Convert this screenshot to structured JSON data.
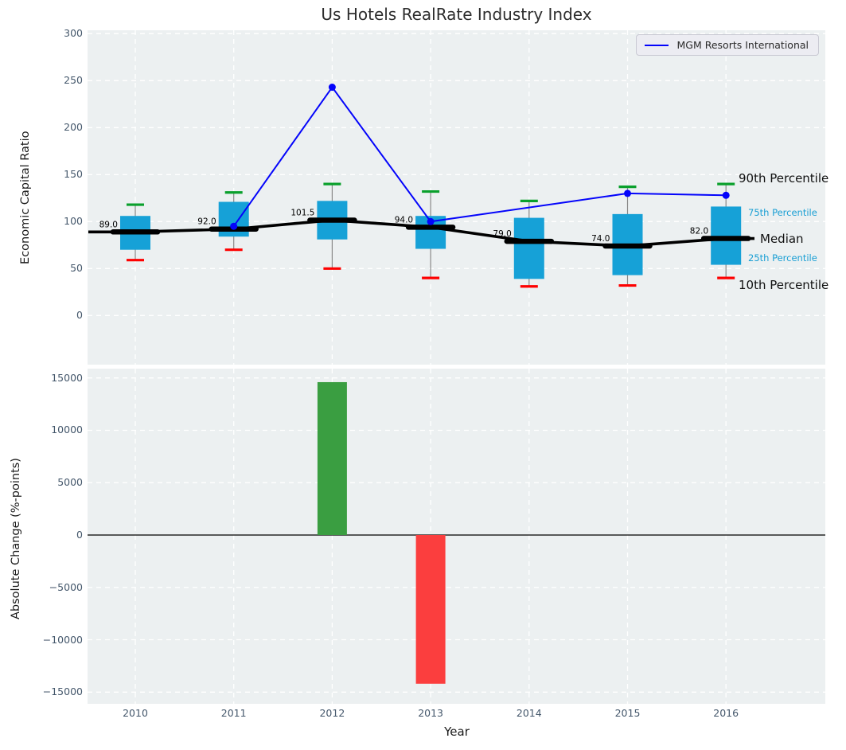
{
  "title": "Us Hotels RealRate Industry Index",
  "legend": {
    "label": "MGM Resorts International"
  },
  "axes": {
    "top": {
      "ylabel": "Economic Capital Ratio",
      "yticks": [
        0,
        50,
        100,
        150,
        200,
        250,
        300
      ]
    },
    "bottom": {
      "ylabel": "Absolute Change (%-points)",
      "xlabel": "Year",
      "yticks": [
        -15000,
        -10000,
        -5000,
        0,
        5000,
        10000,
        15000
      ]
    }
  },
  "percentile_labels": {
    "p90": "90th Percentile",
    "p75": "75th Percentile",
    "median": "Median",
    "p25": "25th Percentile",
    "p10": "10th Percentile"
  },
  "colors": {
    "box": "#16a1d7",
    "whisker": "#888888",
    "cap_top": "#0aa02c",
    "cap_bottom": "#fe0000",
    "median_line": "#000000",
    "mgm_line": "#0404fb",
    "bar_positive": "#3a9e41",
    "bar_negative": "#fb3e3e",
    "plot_bg": "#ecf0f1",
    "grid": "#ffffff",
    "tick_text": "#44576b",
    "pct_blue": "#1a9fd4"
  },
  "chart_data": [
    {
      "type": "box",
      "title": "Us Hotels RealRate Industry Index",
      "ylabel": "Economic Capital Ratio",
      "ylim": [
        -52,
        304
      ],
      "grid": true,
      "legend_position": "upper right",
      "categories": [
        2010,
        2011,
        2012,
        2013,
        2014,
        2015,
        2016
      ],
      "boxes": [
        {
          "year": 2010,
          "p10": 59,
          "p25": 70,
          "median": 89.0,
          "p75": 106,
          "p90": 118
        },
        {
          "year": 2011,
          "p10": 70,
          "p25": 84,
          "median": 92.0,
          "p75": 121,
          "p90": 131
        },
        {
          "year": 2012,
          "p10": 50,
          "p25": 81,
          "median": 101.5,
          "p75": 122,
          "p90": 140
        },
        {
          "year": 2013,
          "p10": 40,
          "p25": 71,
          "median": 94.0,
          "p75": 106,
          "p90": 132
        },
        {
          "year": 2014,
          "p10": 31,
          "p25": 39,
          "median": 79.0,
          "p75": 104,
          "p90": 122
        },
        {
          "year": 2015,
          "p10": 32,
          "p25": 43,
          "median": 74.0,
          "p75": 108,
          "p90": 137
        },
        {
          "year": 2016,
          "p10": 40,
          "p25": 54,
          "median": 82.0,
          "p75": 116,
          "p90": 140
        }
      ],
      "median_labels": [
        "89.0",
        "92.0",
        "101.5",
        "94.0",
        "79.0",
        "74.0",
        "82.0"
      ],
      "series": [
        {
          "name": "MGM Resorts International",
          "points": [
            {
              "x": 2011,
              "y": 95
            },
            {
              "x": 2012,
              "y": 243
            },
            {
              "x": 2013,
              "y": 100
            },
            {
              "x": 2015,
              "y": 130
            },
            {
              "x": 2016,
              "y": 128
            }
          ]
        }
      ]
    },
    {
      "type": "bar",
      "ylabel": "Absolute Change (%-points)",
      "xlabel": "Year",
      "ylim": [
        -16100,
        15890
      ],
      "grid": true,
      "categories": [
        2010,
        2011,
        2012,
        2013,
        2014,
        2015,
        2016
      ],
      "values": [
        null,
        null,
        14600,
        -14200,
        null,
        null,
        null
      ]
    }
  ]
}
